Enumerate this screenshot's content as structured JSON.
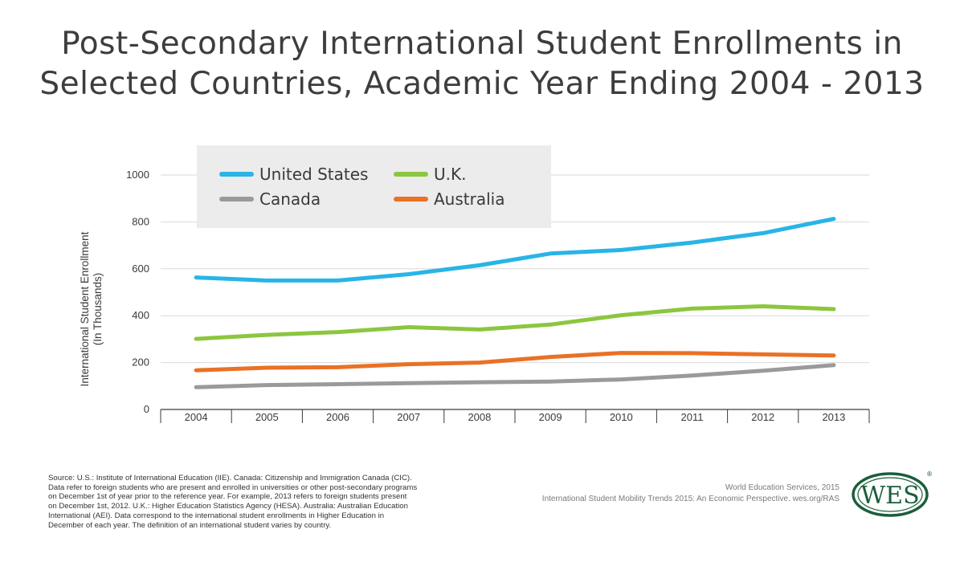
{
  "title_line1": "Post-Secondary International Student Enrollments in",
  "title_line2": "Selected Countries, Academic Year Ending 2004 - 2013",
  "chart_data": {
    "type": "line",
    "title": "Post-Secondary International Student Enrollments in Selected Countries, Academic Year Ending 2004 - 2013",
    "xlabel": "",
    "ylabel_line1": "International Student Enrollment",
    "ylabel_line2": "(In Thousands)",
    "ylim": [
      0,
      1000
    ],
    "yticks": [
      0,
      200,
      400,
      600,
      800,
      1000
    ],
    "grid": true,
    "legend_position": "top-left",
    "categories": [
      "2004",
      "2005",
      "2006",
      "2007",
      "2008",
      "2009",
      "2010",
      "2011",
      "2012",
      "2013"
    ],
    "series": [
      {
        "name": "United States",
        "color": "#29b4e6",
        "values": [
          563,
          550,
          550,
          577,
          615,
          665,
          680,
          712,
          752,
          813
        ]
      },
      {
        "name": "U.K.",
        "color": "#8cc63f",
        "values": [
          301,
          318,
          330,
          351,
          341,
          362,
          402,
          430,
          440,
          428
        ]
      },
      {
        "name": "Canada",
        "color": "#9a9a9a",
        "values": [
          95,
          104,
          108,
          112,
          116,
          119,
          128,
          145,
          165,
          189
        ]
      },
      {
        "name": "Australia",
        "color": "#ea7125",
        "values": [
          167,
          178,
          180,
          193,
          200,
          224,
          241,
          240,
          235,
          230
        ]
      }
    ]
  },
  "source_lines": [
    "Source: U.S.: Institute of International Education (IIE). Canada: Citizenship and Immigration Canada (CIC).",
    "Data refer to foreign students who are present and enrolled in universities or other post-secondary programs",
    "on December 1st of year prior to the reference year. For example, 2013 refers to foreign students present",
    "on December 1st, 2012. U.K.: Higher Education Statistics Agency (HESA). Australia: Australian Education",
    "International (AEI).  Data correspond to the international student enrollments in Higher Education in",
    "December of each year. The definition of an international student varies by country."
  ],
  "credit_line1": "World Education Services, 2015",
  "credit_line2": "International Student Mobility Trends 2015: An Economic Perspective. wes.org/RAS",
  "logo": {
    "text": "WES",
    "registered": "®",
    "color": "#1a5e3a"
  }
}
